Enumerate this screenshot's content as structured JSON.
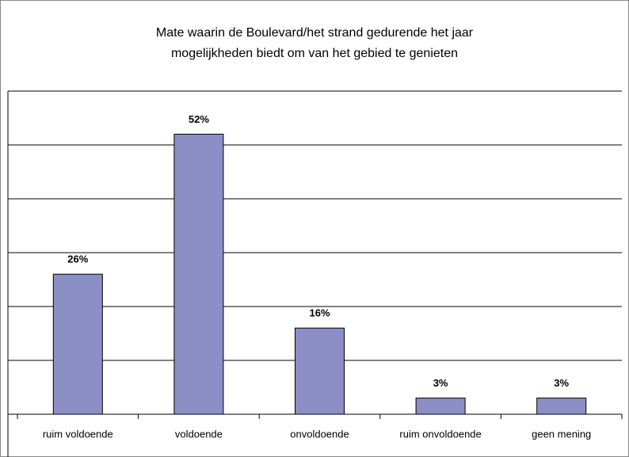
{
  "chart_data": {
    "type": "bar",
    "title": [
      "Mate waarin de Boulevard/het strand gedurende het jaar",
      "mogelijkheden biedt om van het gebied te genieten"
    ],
    "categories": [
      "ruim voldoende",
      "voldoende",
      "onvoldoende",
      "ruim onvoldoende",
      "geen mening"
    ],
    "values": [
      26,
      52,
      16,
      3,
      3
    ],
    "value_labels": [
      "26%",
      "52%",
      "16%",
      "3%",
      "3%"
    ],
    "color": "#8c8fc6",
    "ylim": [
      0,
      60
    ],
    "yticks": [
      0,
      10,
      20,
      30,
      40,
      50,
      60
    ],
    "grid": true
  }
}
